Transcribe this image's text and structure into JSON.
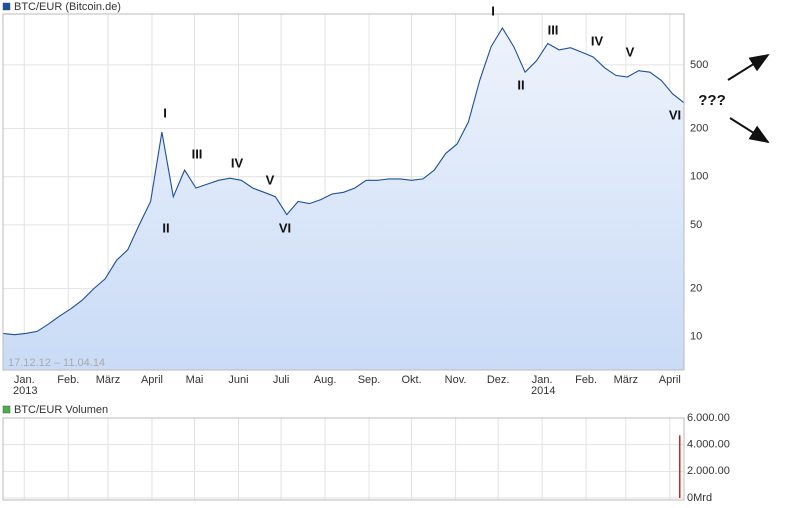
{
  "chart_data": [
    {
      "type": "line",
      "log_scale": true,
      "grid": true,
      "ylim": [
        6.2,
        1040
      ],
      "yticks": [
        10,
        20,
        50,
        100,
        200,
        500
      ],
      "xlim": [
        "2012-12-17",
        "2014-04-11"
      ],
      "xticks": [
        {
          "value": "2013-01",
          "label": "Jan."
        },
        {
          "value": "2013-02",
          "label": "Feb."
        },
        {
          "value": "2013-03",
          "label": "März"
        },
        {
          "value": "2013-04",
          "label": "April"
        },
        {
          "value": "2013-05",
          "label": "Mai"
        },
        {
          "value": "2013-06",
          "label": "Juni"
        },
        {
          "value": "2013-07",
          "label": "Juli"
        },
        {
          "value": "2013-08",
          "label": "Aug."
        },
        {
          "value": "2013-09",
          "label": "Sep."
        },
        {
          "value": "2013-10",
          "label": "Okt."
        },
        {
          "value": "2013-11",
          "label": "Nov."
        },
        {
          "value": "2013-12",
          "label": "Dez."
        },
        {
          "value": "2014-01",
          "label": "Jan."
        },
        {
          "value": "2014-02",
          "label": "Feb."
        },
        {
          "value": "2014-03",
          "label": "März"
        },
        {
          "value": "2014-04",
          "label": "April"
        }
      ],
      "year_labels": [
        "2013",
        "2014"
      ],
      "date_range": "17.12.12 – 11.04.14",
      "annotations": [
        "I",
        "II",
        "III",
        "IV",
        "V",
        "VI",
        "I",
        "II",
        "III",
        "IV",
        "V",
        "VI",
        "???"
      ],
      "series": [
        {
          "name": "BTC/EUR (Bitcoin.de)",
          "color": "#1c4f9c",
          "values": [
            10.5,
            10.3,
            10.5,
            10.8,
            12,
            13.5,
            15,
            17,
            20,
            23,
            30,
            35,
            50,
            70,
            190,
            75,
            110,
            85,
            90,
            95,
            98,
            95,
            85,
            80,
            75,
            58,
            70,
            68,
            72,
            78,
            80,
            85,
            95,
            95,
            97,
            97,
            95,
            97,
            110,
            140,
            160,
            220,
            400,
            650,
            850,
            650,
            450,
            530,
            680,
            620,
            640,
            600,
            560,
            480,
            430,
            420,
            460,
            450,
            400,
            330,
            290
          ]
        }
      ]
    },
    {
      "type": "bar",
      "ylim": [
        0,
        6000
      ],
      "yticks": [
        {
          "value": 0,
          "label": "0Mrd"
        },
        {
          "value": 2000,
          "label": "2.000.00"
        },
        {
          "value": 4000,
          "label": "4.000.00"
        },
        {
          "value": 6000,
          "label": "6.000.00"
        }
      ],
      "legend_color": "#4cae4c",
      "series": [
        {
          "name": "BTC/EUR Volumen",
          "color": "#cc2222",
          "values": [
            0,
            0,
            0,
            0,
            0,
            0,
            0,
            0,
            0,
            0,
            0,
            0,
            0,
            0,
            0,
            0,
            0,
            0,
            0,
            0,
            0,
            0,
            0,
            0,
            0,
            0,
            0,
            0,
            0,
            0,
            0,
            0,
            0,
            0,
            0,
            0,
            0,
            0,
            0,
            0,
            0,
            0,
            0,
            0,
            0,
            0,
            0,
            0,
            0,
            0,
            0,
            0,
            0,
            0,
            0,
            0,
            0,
            0,
            0,
            0,
            4700
          ]
        }
      ]
    }
  ]
}
